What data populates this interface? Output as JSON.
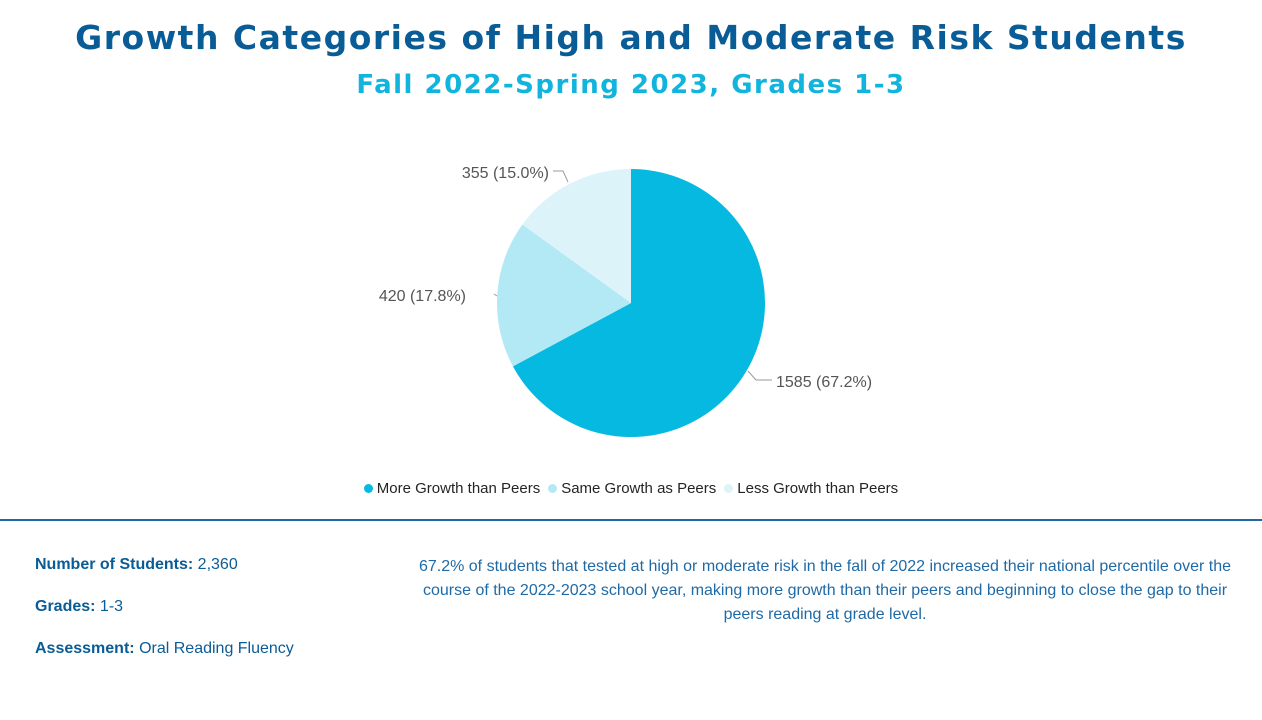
{
  "header": {
    "title": "Growth Categories of High and Moderate Risk Students",
    "subtitle": "Fall 2022-Spring 2023, Grades 1-3"
  },
  "chart_data": {
    "type": "pie",
    "categories": [
      "More Growth than Peers",
      "Same Growth as Peers",
      "Less Growth than Peers"
    ],
    "values": [
      1585,
      420,
      355
    ],
    "percentages": [
      67.2,
      17.8,
      15.0
    ],
    "data_labels": [
      "1585 (67.2%)",
      "420 (17.8%)",
      "355 (15.0%)"
    ],
    "colors": [
      "#05b9e0",
      "#b3e8f5",
      "#dcf3fa"
    ],
    "legend_position": "bottom"
  },
  "legend": {
    "items": [
      {
        "label": "More Growth than Peers",
        "color": "#05b9e0"
      },
      {
        "label": "Same Growth as Peers",
        "color": "#b3e8f5"
      },
      {
        "label": "Less Growth than Peers",
        "color": "#dcf3fa"
      }
    ]
  },
  "stats": {
    "students_label": "Number of Students:",
    "students_value": "2,360",
    "grades_label": "Grades:",
    "grades_value": "1-3",
    "assessment_label": "Assessment:",
    "assessment_value": "Oral Reading Fluency"
  },
  "summary": {
    "text": "67.2% of students that tested at high or moderate risk in the fall of 2022 increased their national percentile over the course of the 2022-2023 school year, making more growth than their peers and beginning to close the gap to their peers reading at grade level."
  }
}
